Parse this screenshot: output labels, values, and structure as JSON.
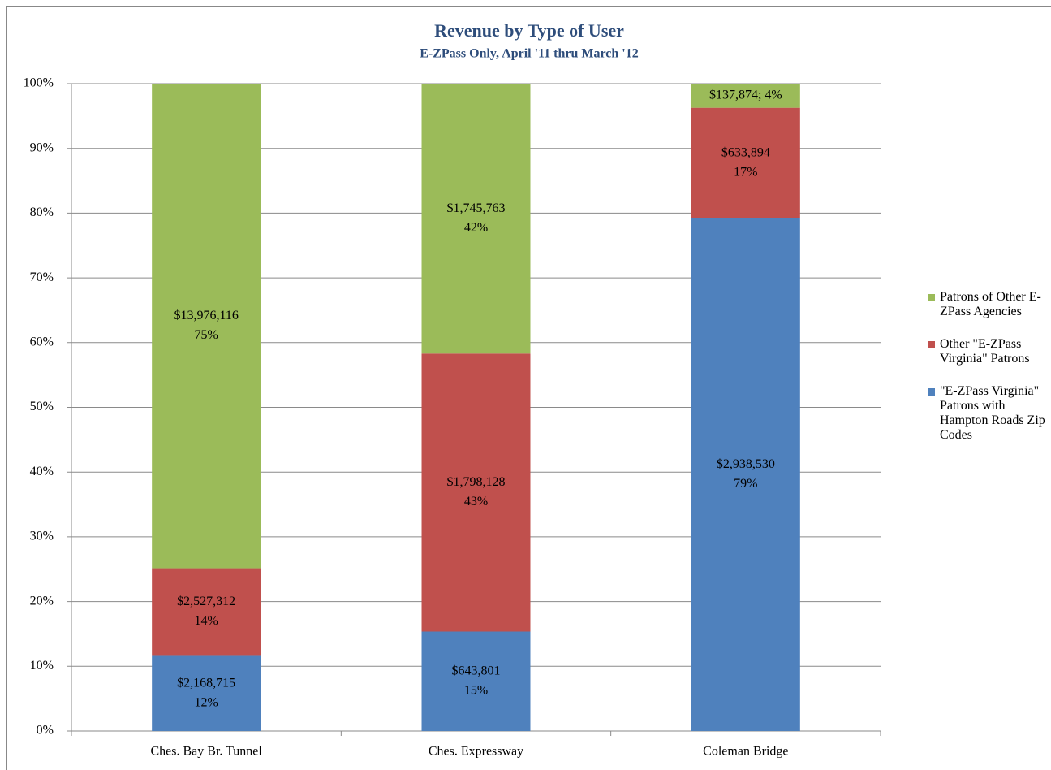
{
  "chart_data": {
    "type": "stacked_bar_percent",
    "title": "Revenue by Type of User",
    "subtitle": "E-ZPass Only, April '11 thru March '12",
    "categories": [
      "Ches. Bay Br. Tunnel",
      "Ches. Expressway",
      "Coleman Bridge"
    ],
    "series": [
      {
        "name": "\"E-ZPass Virginia\" Patrons with Hampton Roads Zip Codes",
        "color": "#4f81bd",
        "values": [
          11.61,
          15.37,
          79.2
        ],
        "value_labels": [
          [
            "$2,168,715",
            "12%"
          ],
          [
            "$643,801",
            "15%"
          ],
          [
            "$2,938,530",
            "79%"
          ]
        ]
      },
      {
        "name": "Other \"E-ZPass Virginia\" Patrons",
        "color": "#c0504d",
        "values": [
          13.54,
          42.94,
          17.08
        ],
        "value_labels": [
          [
            "$2,527,312",
            "14%"
          ],
          [
            "$1,798,128",
            "43%"
          ],
          [
            "$633,894",
            "17%"
          ]
        ]
      },
      {
        "name": "Patrons of Other E-ZPass Agencies",
        "color": "#9bbb59",
        "values": [
          74.85,
          41.69,
          3.72
        ],
        "value_labels": [
          [
            "$13,976,116",
            "75%"
          ],
          [
            "$1,745,763",
            "42%"
          ],
          [
            "$137,874; 4%"
          ]
        ]
      }
    ],
    "ylim": [
      0,
      100
    ],
    "yticks": [
      {
        "value": 0,
        "label": "0%"
      },
      {
        "value": 10,
        "label": "10%"
      },
      {
        "value": 20,
        "label": "20%"
      },
      {
        "value": 30,
        "label": "30%"
      },
      {
        "value": 40,
        "label": "40%"
      },
      {
        "value": 50,
        "label": "50%"
      },
      {
        "value": 60,
        "label": "60%"
      },
      {
        "value": 70,
        "label": "70%"
      },
      {
        "value": 80,
        "label": "80%"
      },
      {
        "value": 90,
        "label": "90%"
      },
      {
        "value": 100,
        "label": "100%"
      }
    ],
    "grid": true,
    "legend": "right"
  }
}
